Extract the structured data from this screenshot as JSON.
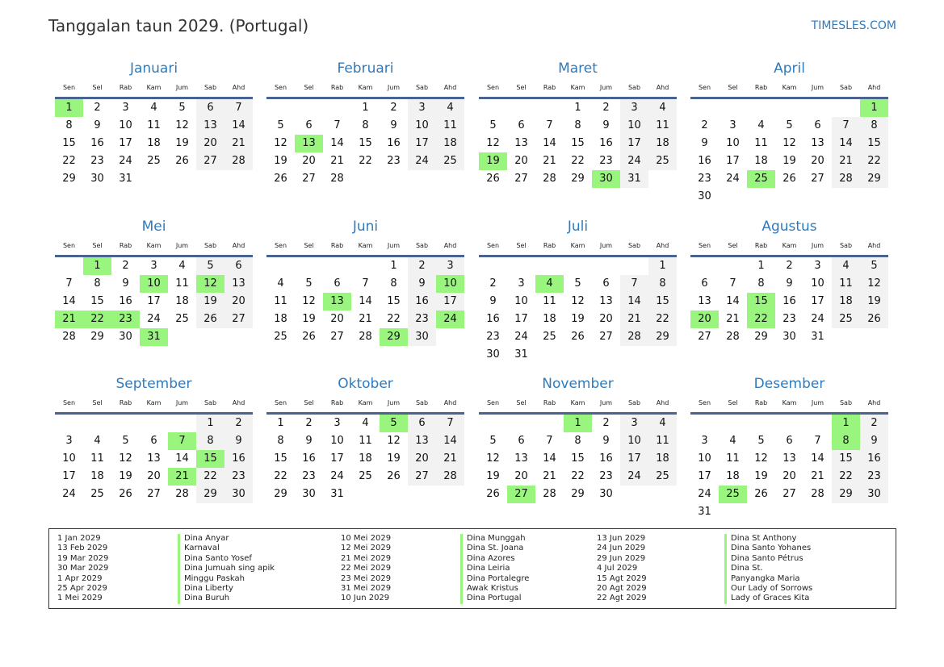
{
  "title": "Tanggalan taun 2029. (Portugal)",
  "brand": "TIMESLES.COM",
  "year": 2029,
  "weekday_names": [
    "Sen",
    "Sel",
    "Rab",
    "Kam",
    "Jum",
    "Sab",
    "Ahd"
  ],
  "colors": {
    "holiday": "#99f57e",
    "weekend": "#f2f2f2",
    "accent": "#2f7bbd",
    "rule": "#4a6390"
  },
  "months": [
    {
      "name": "Januari",
      "holidays": [
        1
      ]
    },
    {
      "name": "Februari",
      "holidays": [
        13
      ]
    },
    {
      "name": "Maret",
      "holidays": [
        19,
        30
      ]
    },
    {
      "name": "April",
      "holidays": [
        1,
        25
      ]
    },
    {
      "name": "Mei",
      "holidays": [
        1,
        10,
        12,
        21,
        22,
        23,
        31
      ]
    },
    {
      "name": "Juni",
      "holidays": [
        10,
        13,
        24,
        29
      ]
    },
    {
      "name": "Juli",
      "holidays": [
        4
      ]
    },
    {
      "name": "Agustus",
      "holidays": [
        15,
        20,
        22
      ]
    },
    {
      "name": "September",
      "holidays": [
        7,
        15,
        21
      ]
    },
    {
      "name": "Oktober",
      "holidays": [
        5
      ]
    },
    {
      "name": "November",
      "holidays": [
        1,
        27
      ]
    },
    {
      "name": "Desember",
      "holidays": [
        1,
        8,
        25
      ]
    }
  ],
  "legend": [
    {
      "date": "1 Jan 2029",
      "name": "Dina Anyar"
    },
    {
      "date": "13 Feb 2029",
      "name": "Karnaval"
    },
    {
      "date": "19 Mar 2029",
      "name": "Dina Santo Yosef"
    },
    {
      "date": "30 Mar 2029",
      "name": "Dina Jumuah sing apik"
    },
    {
      "date": "1 Apr 2029",
      "name": "Minggu Paskah"
    },
    {
      "date": "25 Apr 2029",
      "name": "Dina Liberty"
    },
    {
      "date": "1 Mei 2029",
      "name": "Dina Buruh"
    },
    {
      "date": "10 Mei 2029",
      "name": "Dina Munggah"
    },
    {
      "date": "12 Mei 2029",
      "name": "Dina St. Joana"
    },
    {
      "date": "21 Mei 2029",
      "name": "Dina Azores"
    },
    {
      "date": "22 Mei 2029",
      "name": "Dina Leiria"
    },
    {
      "date": "23 Mei 2029",
      "name": "Dina Portalegre"
    },
    {
      "date": "31 Mei 2029",
      "name": "Awak Kristus"
    },
    {
      "date": "10 Jun 2029",
      "name": "Dina Portugal"
    },
    {
      "date": "13 Jun 2029",
      "name": "Dina St Anthony"
    },
    {
      "date": "24 Jun 2029",
      "name": "Dina Santo Yohanes"
    },
    {
      "date": "29 Jun 2029",
      "name": "Dina Santo Pétrus"
    },
    {
      "date": "4 Jul 2029",
      "name": "Dina St."
    },
    {
      "date": "15 Agt 2029",
      "name": "Panyangka Maria"
    },
    {
      "date": "20 Agt 2029",
      "name": "Our Lady of Sorrows"
    },
    {
      "date": "22 Agt 2029",
      "name": "Lady of Graces Kita"
    }
  ]
}
